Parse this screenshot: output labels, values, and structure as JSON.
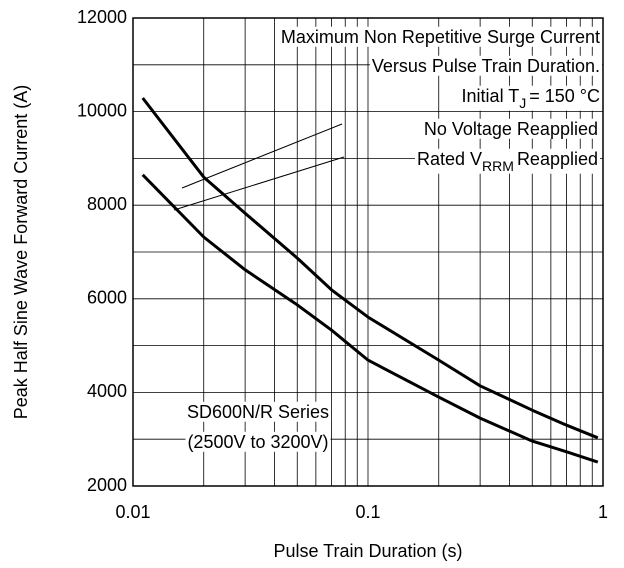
{
  "chart_data": {
    "type": "line",
    "title_lines": [
      "Maximum Non Repetitive Surge Current",
      "Versus Pulse Train Duration.",
      [
        "Initial T",
        "J",
        "= 150 °C"
      ]
    ],
    "x_label": "Pulse Train Duration (s)",
    "y_label": "Peak Half Sine Wave Forward Current (A)",
    "note_lines": [
      "SD600N/R Series",
      "(2500V to 3200V)"
    ],
    "x": [
      0.011,
      0.02,
      0.03,
      0.05,
      0.07,
      0.1,
      0.2,
      0.3,
      0.5,
      0.7,
      0.95
    ],
    "series": [
      {
        "name": "No Voltage Reapplied",
        "color": "#000000",
        "values": [
          10290,
          8600,
          7830,
          6870,
          6190,
          5610,
          4690,
          4140,
          3620,
          3300,
          3030
        ]
      },
      {
        "name": [
          "Rated V",
          "RRM",
          "Reapplied"
        ],
        "color": "#000000",
        "values": [
          8650,
          7320,
          6620,
          5870,
          5330,
          4690,
          3900,
          3450,
          2960,
          2730,
          2510
        ]
      }
    ],
    "xscale": "log",
    "xlim": [
      0.01,
      1
    ],
    "ylim": [
      2000,
      12000
    ],
    "xticks": [
      0.01,
      0.1,
      1
    ],
    "yticks": [
      2000,
      4000,
      6000,
      8000,
      10000,
      12000
    ],
    "xgrid": [
      0.02,
      0.03,
      0.04,
      0.05,
      0.06,
      0.07,
      0.08,
      0.09,
      0.2,
      0.3,
      0.4,
      0.5,
      0.6,
      0.7,
      0.8,
      0.9
    ],
    "ygrid": [
      3000,
      5000,
      7000,
      9000,
      11000
    ],
    "grid": true
  }
}
